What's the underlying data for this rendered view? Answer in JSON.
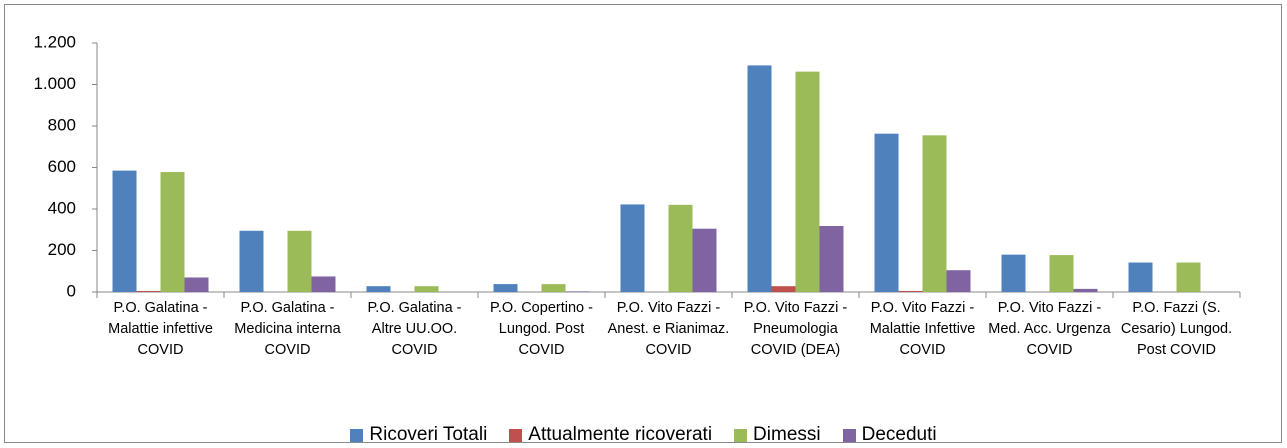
{
  "chart_data": {
    "type": "bar",
    "categories": [
      "P.O. Galatina - Malattie infettive COVID",
      "P.O. Galatina - Medicina interna COVID",
      "P.O. Galatina - Altre UU.OO. COVID",
      "P.O. Copertino - Lungod. Post COVID",
      "P.O. Vito Fazzi - Anest. e Rianimaz. COVID",
      "P.O. Vito Fazzi - Pneumologia COVID (DEA)",
      "P.O. Vito Fazzi - Malattie Infettive COVID",
      "P.O. Vito Fazzi - Med. Acc. Urgenza COVID",
      "P.O. Fazzi (S. Cesario) Lungod. Post COVID"
    ],
    "series": [
      {
        "name": "Ricoveri Totali",
        "color": "#4f81bd",
        "values": [
          585,
          295,
          28,
          38,
          422,
          1092,
          763,
          180,
          142
        ]
      },
      {
        "name": "Attualmente ricoverati",
        "color": "#c0504d",
        "values": [
          5,
          0,
          0,
          0,
          0,
          28,
          5,
          0,
          0
        ]
      },
      {
        "name": "Dimessi",
        "color": "#9bbb59",
        "values": [
          578,
          295,
          28,
          38,
          420,
          1062,
          755,
          178,
          142
        ]
      },
      {
        "name": "Deceduti",
        "color": "#8064a2",
        "values": [
          70,
          75,
          0,
          3,
          305,
          318,
          105,
          15,
          0
        ]
      }
    ],
    "ylim": [
      0,
      1200
    ],
    "yticks": [
      0,
      200,
      400,
      600,
      800,
      {
        "value": 1000,
        "label": "1.000"
      },
      {
        "value": 1200,
        "label": "1.200"
      }
    ],
    "grid": false,
    "legend": "bottom"
  }
}
